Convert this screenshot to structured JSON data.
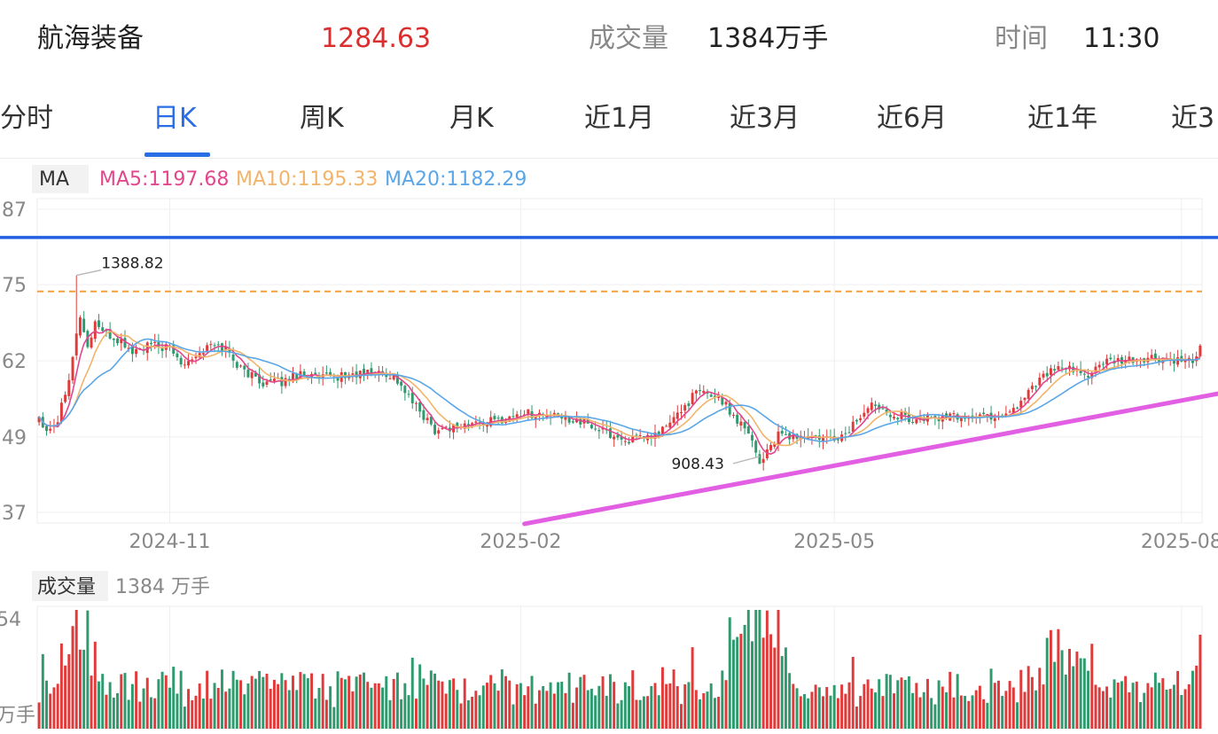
{
  "header": {
    "name": "航海装备",
    "price": "1284.63",
    "volume_label": "成交量",
    "volume_value": "1384万手",
    "time_label": "时间",
    "time_value": "11:30"
  },
  "tabs": [
    "分时",
    "日K",
    "周K",
    "月K",
    "近1月",
    "近3月",
    "近6月",
    "近1年",
    "近3"
  ],
  "active_tab": "日K",
  "ma_legend": {
    "label": "MA",
    "ma5": "MA5:1197.68",
    "ma10": "MA10:1195.33",
    "ma20": "MA20:1182.29"
  },
  "volume_legend": {
    "label": "成交量",
    "value": "1384 万手"
  },
  "colors": {
    "up": "#e03a3a",
    "down": "#2e9a6e",
    "ma5": "#e2468c",
    "ma10": "#f2b46a",
    "ma20": "#5aa6e8",
    "resistance_line": "#1f5fe0",
    "dashed_line": "#f0a040",
    "trend_line": "#e25ee2",
    "accent": "#2a6ee6"
  },
  "chart_data": [
    {
      "type": "candlestick",
      "y_tick_labels": [
        "87",
        "75",
        "62",
        "49",
        "37"
      ],
      "y_tick_values": [
        1487,
        1375,
        1262,
        1149,
        1037
      ],
      "ylim": [
        1037,
        1487
      ],
      "x_tick_labels": [
        "2024-11",
        "2025-02",
        "2025-05",
        "2025-08"
      ],
      "x_tick_index": [
        35,
        129,
        213,
        306
      ],
      "n_bars": 312,
      "anchors": [
        [
          0,
          1180
        ],
        [
          2,
          1160
        ],
        [
          5,
          1175
        ],
        [
          8,
          1240
        ],
        [
          10,
          1300
        ],
        [
          11,
          1330
        ],
        [
          13,
          1280
        ],
        [
          15,
          1320
        ],
        [
          18,
          1300
        ],
        [
          22,
          1290
        ],
        [
          25,
          1275
        ],
        [
          30,
          1285
        ],
        [
          35,
          1280
        ],
        [
          38,
          1260
        ],
        [
          42,
          1270
        ],
        [
          46,
          1285
        ],
        [
          50,
          1280
        ],
        [
          54,
          1250
        ],
        [
          60,
          1230
        ],
        [
          65,
          1230
        ],
        [
          70,
          1245
        ],
        [
          75,
          1235
        ],
        [
          82,
          1240
        ],
        [
          90,
          1245
        ],
        [
          95,
          1240
        ],
        [
          100,
          1200
        ],
        [
          106,
          1160
        ],
        [
          112,
          1165
        ],
        [
          118,
          1170
        ],
        [
          124,
          1175
        ],
        [
          130,
          1185
        ],
        [
          136,
          1180
        ],
        [
          144,
          1175
        ],
        [
          150,
          1160
        ],
        [
          156,
          1145
        ],
        [
          160,
          1145
        ],
        [
          165,
          1150
        ],
        [
          170,
          1175
        ],
        [
          176,
          1215
        ],
        [
          182,
          1210
        ],
        [
          186,
          1180
        ],
        [
          190,
          1160
        ],
        [
          193,
          1110
        ],
        [
          195,
          1130
        ],
        [
          198,
          1150
        ],
        [
          205,
          1148
        ],
        [
          212,
          1145
        ],
        [
          216,
          1152
        ],
        [
          219,
          1175
        ],
        [
          224,
          1200
        ],
        [
          228,
          1185
        ],
        [
          234,
          1175
        ],
        [
          242,
          1178
        ],
        [
          250,
          1180
        ],
        [
          257,
          1180
        ],
        [
          262,
          1195
        ],
        [
          266,
          1225
        ],
        [
          270,
          1245
        ],
        [
          275,
          1250
        ],
        [
          280,
          1240
        ],
        [
          285,
          1258
        ],
        [
          292,
          1262
        ],
        [
          298,
          1265
        ],
        [
          304,
          1262
        ],
        [
          307,
          1258
        ],
        [
          309,
          1262
        ],
        [
          311,
          1284.63
        ]
      ],
      "annotations": [
        {
          "text": "1388.82",
          "value": 1388.82,
          "index": 10
        },
        {
          "text": "908.43",
          "value": 908.43,
          "index": 193
        }
      ],
      "ma": {
        "MA5": 1197.68,
        "MA10": 1195.33,
        "MA20": 1182.29
      },
      "horizontal_lines": [
        {
          "name": "blue resistance line",
          "value": 1445
        },
        {
          "name": "orange dashed line",
          "value": 1365
        }
      ],
      "trend_line": {
        "from": [
          130,
          1020
        ],
        "to": [
          311,
          1200
        ]
      },
      "grid": true
    },
    {
      "type": "bar",
      "y_tick_labels": [
        "54",
        "万手"
      ],
      "current_value": 1384,
      "unit": "万手",
      "peak_index": 198,
      "grid": true
    }
  ]
}
